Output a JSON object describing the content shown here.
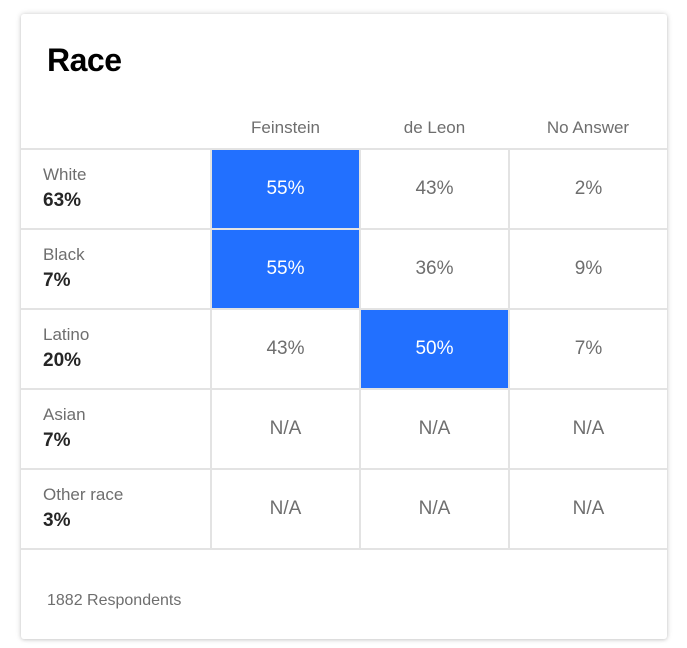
{
  "title": "Race",
  "columns": [
    "Feinstein",
    "de Leon",
    "No Answer"
  ],
  "rows": [
    {
      "group": "White",
      "share": "63%",
      "values": [
        "55%",
        "43%",
        "2%"
      ],
      "winner": 0
    },
    {
      "group": "Black",
      "share": "7%",
      "values": [
        "55%",
        "36%",
        "9%"
      ],
      "winner": 0
    },
    {
      "group": "Latino",
      "share": "20%",
      "values": [
        "43%",
        "50%",
        "7%"
      ],
      "winner": 1
    },
    {
      "group": "Asian",
      "share": "7%",
      "values": [
        "N/A",
        "N/A",
        "N/A"
      ],
      "winner": null
    },
    {
      "group": "Other race",
      "share": "3%",
      "values": [
        "N/A",
        "N/A",
        "N/A"
      ],
      "winner": null
    }
  ],
  "footer": "1882 Respondents",
  "colors": {
    "highlight": "#2270ff",
    "text_muted": "#6e6e6e",
    "text_strong": "#262626",
    "border": "#e3e3e3"
  }
}
